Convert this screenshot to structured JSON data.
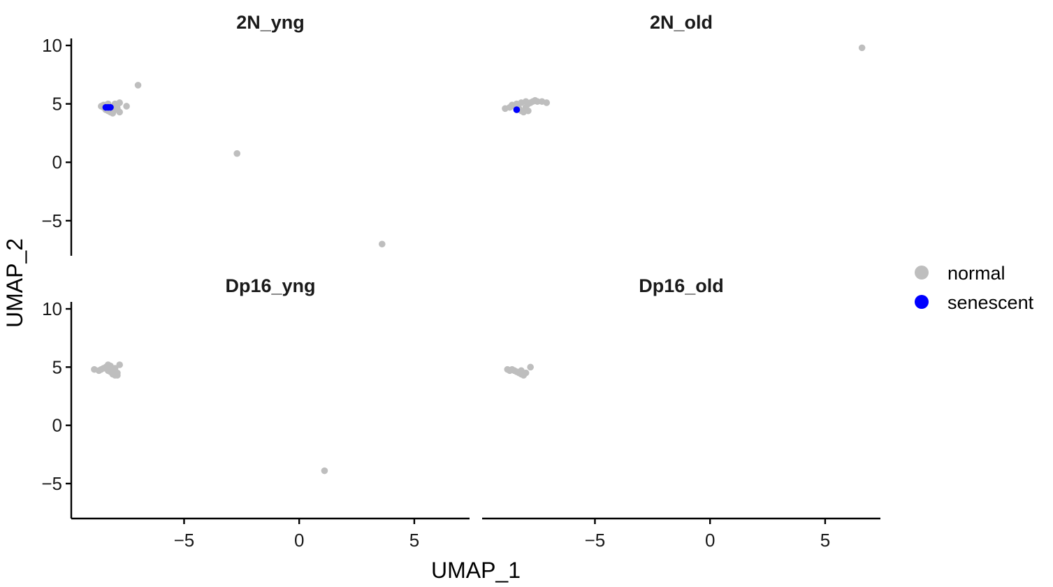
{
  "chart_data": {
    "type": "scatter",
    "xlabel": "UMAP_1",
    "ylabel": "UMAP_2",
    "xlim": [
      -9.9,
      7.4
    ],
    "ylim": [
      -8.0,
      10.6
    ],
    "xticks": [
      -5,
      0,
      5
    ],
    "yticks": [
      10,
      5,
      0,
      -5
    ],
    "grid": false,
    "legend_position": "right",
    "legend": [
      {
        "label": "normal",
        "color": "#bebebe"
      },
      {
        "label": "senescent",
        "color": "#0000ff"
      }
    ],
    "facets": [
      {
        "title": "2N_yng",
        "series": [
          {
            "name": "normal",
            "points": [
              [
                -8.6,
                4.8
              ],
              [
                -8.5,
                4.7
              ],
              [
                -8.4,
                4.9
              ],
              [
                -8.3,
                4.6
              ],
              [
                -8.3,
                4.4
              ],
              [
                -8.2,
                4.3
              ],
              [
                -8.1,
                4.2
              ],
              [
                -8.0,
                5.0
              ],
              [
                -7.9,
                4.9
              ],
              [
                -7.8,
                5.1
              ],
              [
                -8.0,
                4.5
              ],
              [
                -8.2,
                4.7
              ],
              [
                -8.4,
                4.5
              ],
              [
                -8.1,
                4.6
              ],
              [
                -7.8,
                4.3
              ],
              [
                -8.5,
                4.9
              ],
              [
                -8.3,
                5.0
              ],
              [
                -7.9,
                4.6
              ],
              [
                -7.5,
                4.8
              ],
              [
                -7.0,
                6.6
              ],
              [
                -2.7,
                0.75
              ],
              [
                3.6,
                -7.0
              ]
            ]
          },
          {
            "name": "senescent",
            "points": [
              [
                -8.4,
                4.7
              ],
              [
                -8.3,
                4.7
              ],
              [
                -8.2,
                4.7
              ]
            ]
          }
        ]
      },
      {
        "title": "2N_old",
        "series": [
          {
            "name": "normal",
            "points": [
              [
                -8.9,
                4.6
              ],
              [
                -8.7,
                4.7
              ],
              [
                -8.6,
                4.9
              ],
              [
                -8.5,
                4.8
              ],
              [
                -8.4,
                5.0
              ],
              [
                -8.3,
                4.6
              ],
              [
                -8.2,
                4.4
              ],
              [
                -8.1,
                4.3
              ],
              [
                -8.0,
                4.7
              ],
              [
                -7.9,
                5.0
              ],
              [
                -7.8,
                5.1
              ],
              [
                -7.7,
                5.2
              ],
              [
                -7.6,
                5.3
              ],
              [
                -7.5,
                5.2
              ],
              [
                -7.3,
                5.2
              ],
              [
                -7.1,
                5.1
              ],
              [
                -8.0,
                5.2
              ],
              [
                -8.2,
                5.1
              ],
              [
                -7.9,
                4.4
              ],
              [
                -8.4,
                4.5
              ],
              [
                6.6,
                9.8
              ]
            ]
          },
          {
            "name": "senescent",
            "points": [
              [
                -8.4,
                4.5
              ]
            ]
          }
        ]
      },
      {
        "title": "Dp16_yng",
        "series": [
          {
            "name": "normal",
            "points": [
              [
                -8.9,
                4.8
              ],
              [
                -8.7,
                4.7
              ],
              [
                -8.6,
                4.8
              ],
              [
                -8.5,
                4.9
              ],
              [
                -8.4,
                5.0
              ],
              [
                -8.3,
                5.2
              ],
              [
                -8.2,
                4.6
              ],
              [
                -8.1,
                4.4
              ],
              [
                -8.0,
                4.3
              ],
              [
                -7.9,
                4.5
              ],
              [
                -8.0,
                4.9
              ],
              [
                -8.2,
                5.1
              ],
              [
                -7.8,
                5.2
              ],
              [
                -8.3,
                4.7
              ],
              [
                -7.9,
                4.3
              ],
              [
                1.1,
                -3.9
              ]
            ]
          },
          {
            "name": "senescent",
            "points": []
          }
        ]
      },
      {
        "title": "Dp16_old",
        "series": [
          {
            "name": "normal",
            "points": [
              [
                -8.8,
                4.8
              ],
              [
                -8.7,
                4.7
              ],
              [
                -8.6,
                4.8
              ],
              [
                -8.5,
                4.7
              ],
              [
                -8.4,
                4.6
              ],
              [
                -8.3,
                4.5
              ],
              [
                -8.2,
                4.4
              ],
              [
                -8.1,
                4.3
              ],
              [
                -8.2,
                4.7
              ],
              [
                -8.0,
                4.5
              ],
              [
                -7.8,
                5.0
              ]
            ]
          },
          {
            "name": "senescent",
            "points": []
          }
        ]
      }
    ]
  }
}
